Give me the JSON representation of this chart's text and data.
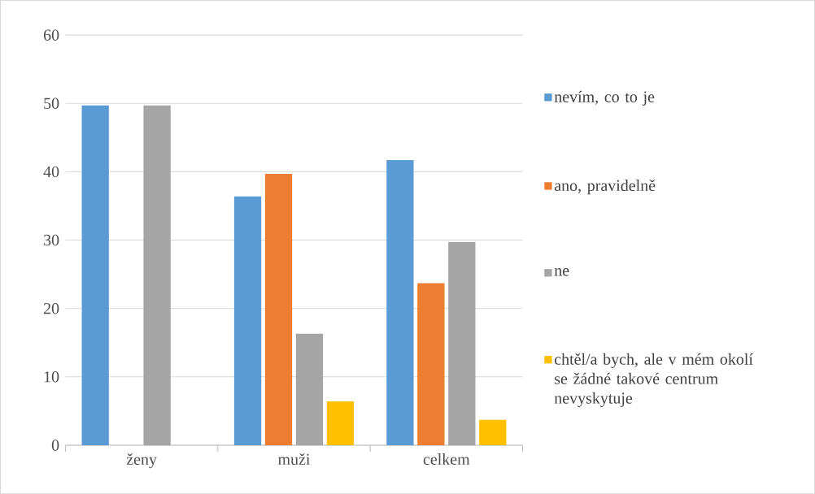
{
  "chart_data": {
    "type": "bar",
    "categories": [
      "ženy",
      "muži",
      "celkem"
    ],
    "series": [
      {
        "name": "nevím, co to je",
        "color": "#5b9bd5",
        "values": [
          49.7,
          36.4,
          41.7
        ]
      },
      {
        "name": "ano, pravidelně",
        "color": "#ed7d31",
        "values": [
          0,
          39.7,
          23.7
        ]
      },
      {
        "name": "ne",
        "color": "#a5a5a5",
        "values": [
          49.7,
          16.3,
          29.7
        ]
      },
      {
        "name": "chtěl/a bych, ale v mém okolí se žádné takové centrum nevyskytuje",
        "color": "#ffc000",
        "values": [
          0,
          6.4,
          3.7
        ]
      }
    ],
    "ylim": [
      0,
      60
    ],
    "yticks": [
      0,
      10,
      20,
      30,
      40,
      50,
      60
    ],
    "grid": "y",
    "legend": "right"
  }
}
